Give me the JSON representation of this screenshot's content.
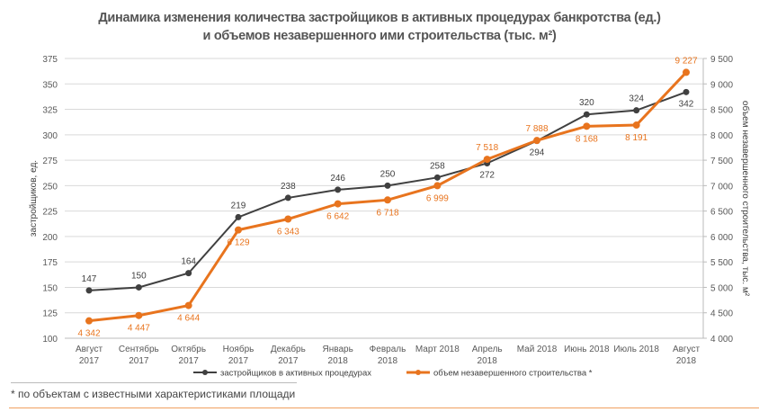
{
  "chart_data": {
    "type": "line",
    "title_line1": "Динамика изменения количества застройщиков в  активных процедурах банкротства (ед.)",
    "title_line2": "и объемов незавершенного ими строительства (тыс. м²)",
    "categories": [
      [
        "Август",
        "2017"
      ],
      [
        "Сентябрь",
        "2017"
      ],
      [
        "Октябрь",
        "2017"
      ],
      [
        "Ноябрь",
        "2017"
      ],
      [
        "Декабрь",
        "2017"
      ],
      [
        "Январь",
        "2018"
      ],
      [
        "Февраль",
        "2018"
      ],
      [
        "Март 2018",
        ""
      ],
      [
        "Апрель",
        "2018"
      ],
      [
        "Май 2018",
        ""
      ],
      [
        "Июнь  2018",
        ""
      ],
      [
        "Июль  2018",
        ""
      ],
      [
        "Август",
        "2018"
      ]
    ],
    "ylabel_left": "застройщиков, ед.",
    "ylabel_right": "объем незавершенного строительства, тыс. м²",
    "ylim_left": [
      100,
      375
    ],
    "yticks_left": [
      100,
      125,
      150,
      175,
      200,
      225,
      250,
      275,
      300,
      325,
      350,
      375
    ],
    "ylim_right": [
      4000,
      9500
    ],
    "yticks_right": [
      "4 000",
      "4 500",
      "5 000",
      "5 500",
      "6 000",
      "6 500",
      "7 000",
      "7 500",
      "8 000",
      "8 500",
      "9 000",
      "9 500"
    ],
    "grid": true,
    "legend_position": "bottom",
    "series": [
      {
        "name": "застройщиков  в  активных  процедурах",
        "axis": "left",
        "color": "#404040",
        "values": [
          147,
          150,
          164,
          219,
          238,
          246,
          250,
          258,
          272,
          294,
          320,
          324,
          342
        ],
        "labels": [
          "147",
          "150",
          "164",
          "219",
          "238",
          "246",
          "250",
          "258",
          "272",
          "294",
          "320",
          "324",
          "342"
        ]
      },
      {
        "name": "объем  незавершенного  строительства  *",
        "axis": "right",
        "color": "#e8741e",
        "values": [
          4342,
          4447,
          4644,
          6129,
          6343,
          6642,
          6718,
          6999,
          7518,
          7888,
          8168,
          8191,
          9227
        ],
        "labels": [
          "4 342",
          "4 447",
          "4 644",
          "6 129",
          "6 343",
          "6 642",
          "6 718",
          "6 999",
          "7 518",
          "7 888",
          "8 168",
          "8 191",
          "9 227"
        ]
      }
    ]
  },
  "footnote": "* по объектам с известными характеристиками площади"
}
